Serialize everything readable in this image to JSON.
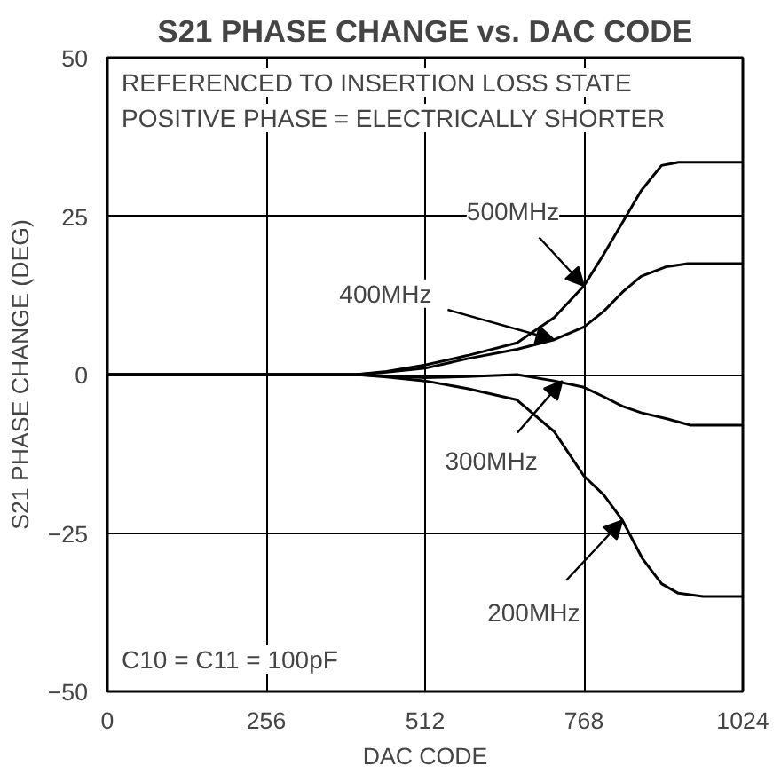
{
  "chart_data": {
    "type": "line",
    "title": "S21 PHASE CHANGE vs. DAC CODE",
    "xlabel": "DAC CODE",
    "ylabel": "S21 PHASE CHANGE (DEG)",
    "xlim": [
      0,
      1024
    ],
    "ylim": [
      -50,
      50
    ],
    "xticks": [
      0,
      256,
      512,
      768,
      1024
    ],
    "yticks": [
      -50,
      -25,
      0,
      25,
      50
    ],
    "grid": true,
    "marker": "none",
    "line_style": "solid",
    "series": [
      {
        "color": "#000000",
        "x": [
          0,
          300,
          400,
          450,
          512,
          580,
          660,
          720,
          768,
          800,
          830,
          860,
          893,
          920,
          960,
          1024
        ],
        "values": [
          0,
          0,
          0,
          0.5,
          1.5,
          3,
          5,
          9,
          14,
          19,
          24,
          29,
          33,
          33.5,
          33.5,
          33.5
        ]
      },
      {
        "color": "#000000",
        "x": [
          0,
          300,
          400,
          450,
          512,
          580,
          660,
          720,
          768,
          800,
          830,
          860,
          900,
          935,
          980,
          1024
        ],
        "values": [
          0,
          0,
          0,
          0.4,
          1,
          2.5,
          4,
          5.5,
          7.5,
          10,
          13,
          15.5,
          17,
          17.5,
          17.5,
          17.5
        ]
      },
      {
        "color": "#000000",
        "x": [
          0,
          300,
          400,
          450,
          512,
          580,
          660,
          720,
          768,
          800,
          830,
          860,
          903,
          940,
          980,
          1024
        ],
        "values": [
          0,
          0,
          0,
          -0.2,
          -0.5,
          -0.3,
          0,
          -1,
          -2,
          -3.5,
          -5,
          -6,
          -7,
          -8,
          -8,
          -8
        ]
      },
      {
        "color": "#000000",
        "x": [
          0,
          300,
          400,
          450,
          512,
          580,
          660,
          720,
          768,
          800,
          830,
          862,
          893,
          920,
          960,
          1024
        ],
        "values": [
          0,
          0,
          0,
          -0.4,
          -1,
          -2.2,
          -4,
          -9,
          -16,
          -19,
          -23,
          -29,
          -33,
          -34.5,
          -35,
          -35
        ]
      }
    ],
    "annotations": [
      "REFERENCED TO INSERTION LOSS STATE",
      "POSITIVE PHASE = ELECTRICALLY SHORTER",
      "C10 = C11 = 100pF",
      {
        "text": "500MHz",
        "x": 768,
        "y": 14
      },
      {
        "text": "400MHz",
        "x": 720,
        "y": 5.5
      },
      {
        "text": "300MHz",
        "x": 733,
        "y": -1
      },
      {
        "text": "200MHz",
        "x": 830,
        "y": -23
      }
    ]
  }
}
